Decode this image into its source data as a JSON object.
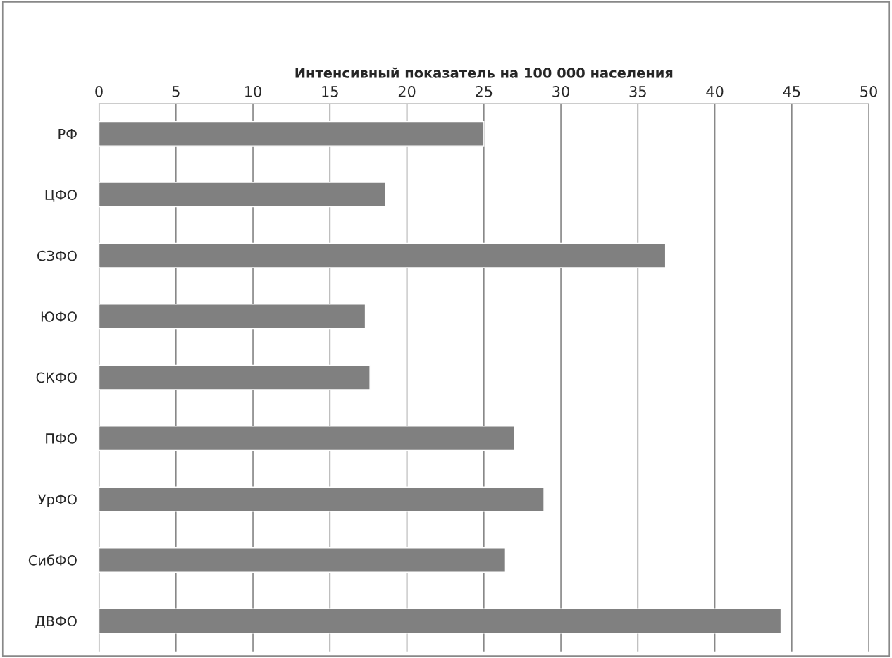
{
  "chart_data": {
    "type": "bar",
    "orientation": "horizontal",
    "xlabel": "Интенсивный показатель на 100 000 населения",
    "categories": [
      "РФ",
      "ЦФО",
      "СЗФО",
      "ЮФО",
      "СКФО",
      "ПФО",
      "УрФО",
      "СибФО",
      "ДВФО"
    ],
    "values": [
      25.0,
      18.6,
      36.8,
      17.3,
      17.6,
      27.0,
      28.9,
      26.4,
      44.3
    ],
    "color": "#808080",
    "xlim": [
      0,
      50
    ],
    "xticks": [
      0,
      5,
      10,
      15,
      20,
      25,
      30,
      35,
      40,
      45,
      50
    ],
    "grid": "x",
    "legend": false
  }
}
